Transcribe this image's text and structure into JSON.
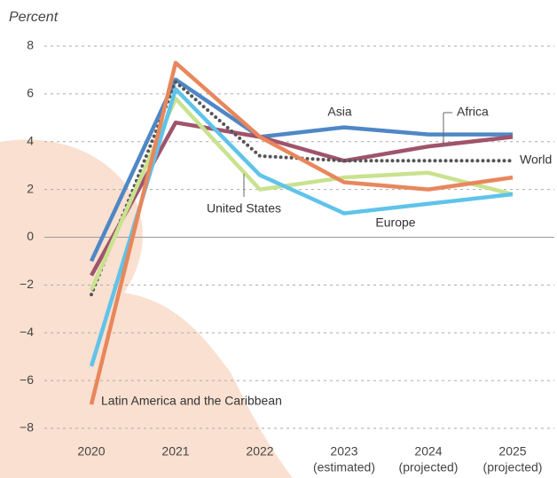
{
  "chart_data": {
    "type": "line",
    "y_label": "Percent",
    "categories": [
      "2020",
      "2021",
      "2022",
      "2023",
      "2024",
      "2025"
    ],
    "x_sublabels": [
      null,
      null,
      null,
      "(estimated)",
      "(projected)",
      "(projected)"
    ],
    "ylim": [
      -8,
      8
    ],
    "yticks": [
      8,
      6,
      4,
      2,
      0,
      {
        "value": -2,
        "label": "−2"
      },
      {
        "value": -4,
        "label": "−4"
      },
      {
        "value": -6,
        "label": "−6"
      },
      {
        "value": -8,
        "label": "−8"
      }
    ],
    "grid": true,
    "series": [
      {
        "name": "Asia",
        "color": "#4f87c6",
        "style": "solid",
        "values": [
          -1.0,
          6.6,
          4.2,
          4.6,
          4.3,
          4.3
        ]
      },
      {
        "name": "Africa",
        "color": "#a0546c",
        "style": "solid",
        "values": [
          -1.6,
          4.8,
          4.2,
          3.2,
          3.8,
          4.2
        ]
      },
      {
        "name": "World",
        "color": "#555555",
        "style": "dotted",
        "values": [
          -2.4,
          6.5,
          3.4,
          3.2,
          3.2,
          3.2
        ]
      },
      {
        "name": "United States",
        "color": "#c9e28f",
        "style": "solid",
        "values": [
          -2.2,
          5.8,
          2.0,
          2.5,
          2.7,
          1.8
        ]
      },
      {
        "name": "Europe",
        "color": "#5fc3ea",
        "style": "solid",
        "values": [
          -5.4,
          6.2,
          2.6,
          1.0,
          1.4,
          1.8
        ]
      },
      {
        "name": "Latin America and the Caribbean",
        "color": "#e8875c",
        "style": "solid",
        "values": [
          -7.0,
          7.3,
          4.2,
          2.3,
          2.0,
          2.5
        ]
      }
    ]
  }
}
